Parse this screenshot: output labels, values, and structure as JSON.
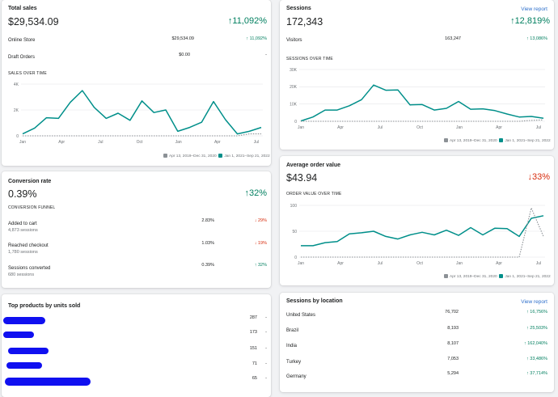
{
  "legend": {
    "previous": "Apr 13, 2019–Dec 31, 2020",
    "current": "Jan 1, 2021–Sep 21, 2022",
    "previous_color": "#8c9196",
    "current_color": "#008f8a"
  },
  "total_sales": {
    "title": "Total sales",
    "value": "$29,534.09",
    "change": "11,092%",
    "arrow": "↑",
    "rows": [
      {
        "label": "Online Store",
        "value": "$29,534.09",
        "change": "↑ 11,092%"
      },
      {
        "label": "Draft Orders",
        "value": "$0.00",
        "change": "-"
      }
    ],
    "chart_label": "SALES OVER TIME",
    "chart_data": {
      "type": "line",
      "y_ticks": [
        "0",
        "2K",
        "4K"
      ],
      "ylim": [
        0,
        4000
      ],
      "x_ticks": [
        "Jan",
        "Apr",
        "Jul",
        "Oct",
        "Jan",
        "Apr",
        "Jul"
      ],
      "series": [
        {
          "name": "Jan 1, 2021–Sep 21, 2022",
          "values": [
            150,
            600,
            1400,
            1350,
            2600,
            3500,
            2200,
            1350,
            1750,
            1200,
            2700,
            1800,
            2000,
            350,
            650,
            1050,
            2650,
            1250,
            150,
            350,
            650
          ]
        },
        {
          "name": "Apr 13, 2019–Dec 31, 2020",
          "values": [
            0,
            0,
            0,
            0,
            0,
            0,
            0,
            0,
            0,
            0,
            0,
            0,
            0,
            0,
            0,
            0,
            0,
            0,
            0,
            150,
            150
          ]
        }
      ]
    }
  },
  "sessions": {
    "title": "Sessions",
    "view_report": "View report",
    "value": "172,343",
    "change": "12,819%",
    "arrow": "↑",
    "rows": [
      {
        "label": "Visitors",
        "value": "163,247",
        "change": "↑ 13,086%"
      }
    ],
    "chart_label": "SESSIONS OVER TIME",
    "chart_data": {
      "type": "line",
      "y_ticks": [
        "0",
        "10K",
        "20K",
        "30K"
      ],
      "ylim": [
        0,
        30000
      ],
      "x_ticks": [
        "Jan",
        "Apr",
        "Jul",
        "Oct",
        "Jan",
        "Apr",
        "Jul"
      ],
      "series": [
        {
          "name": "Jan 1, 2021–Sep 21, 2022",
          "values": [
            200,
            2500,
            6500,
            6500,
            9000,
            12500,
            21000,
            18000,
            18200,
            9500,
            9700,
            6500,
            7500,
            11500,
            7000,
            7200,
            6200,
            4200,
            2500,
            2800,
            1800
          ]
        },
        {
          "name": "Apr 13, 2019–Dec 31, 2020",
          "values": [
            0,
            0,
            0,
            0,
            0,
            0,
            0,
            0,
            0,
            0,
            0,
            0,
            0,
            0,
            0,
            0,
            0,
            0,
            0,
            500,
            800
          ]
        }
      ]
    }
  },
  "conversion": {
    "title": "Conversion rate",
    "value": "0.39%",
    "change": "32%",
    "arrow": "↑",
    "funnel_label": "CONVERSION FUNNEL",
    "rows": [
      {
        "label": "Added to cart",
        "sub": "4,873 sessions",
        "value": "2.83%",
        "change": "↓ 29%",
        "dir": "down"
      },
      {
        "label": "Reached checkout",
        "sub": "1,780 sessions",
        "value": "1.03%",
        "change": "↓ 19%",
        "dir": "down"
      },
      {
        "label": "Sessions converted",
        "sub": "680 sessions",
        "value": "0.39%",
        "change": "↑ 32%",
        "dir": "up"
      }
    ]
  },
  "aov": {
    "title": "Average order value",
    "value": "$43.94",
    "change": "33%",
    "arrow": "↓",
    "chart_label": "ORDER VALUE OVER TIME",
    "chart_data": {
      "type": "line",
      "y_ticks": [
        "0",
        "50",
        "100"
      ],
      "ylim": [
        0,
        100
      ],
      "x_ticks": [
        "Jan",
        "Apr",
        "Jul",
        "Oct",
        "Jan",
        "Apr",
        "Jul"
      ],
      "series": [
        {
          "name": "Jan 1, 2021–Sep 21, 2022",
          "values": [
            22,
            22,
            28,
            30,
            45,
            47,
            50,
            40,
            35,
            43,
            48,
            43,
            52,
            42,
            57,
            43,
            56,
            55,
            40,
            75,
            80
          ]
        },
        {
          "name": "Apr 13, 2019–Dec 31, 2020",
          "values": [
            0,
            0,
            0,
            0,
            0,
            0,
            0,
            0,
            0,
            0,
            0,
            0,
            0,
            0,
            0,
            0,
            0,
            0,
            0,
            95,
            40
          ]
        }
      ]
    }
  },
  "top_products": {
    "title": "Top products by units sold",
    "rows": [
      {
        "value": "287",
        "change": "-"
      },
      {
        "value": "173",
        "change": "-"
      },
      {
        "value": "151",
        "change": "-"
      },
      {
        "value": "71",
        "change": "-"
      },
      {
        "value": "65",
        "change": "-"
      }
    ]
  },
  "locations": {
    "title": "Sessions by location",
    "view_report": "View report",
    "rows": [
      {
        "label": "United States",
        "value": "76,702",
        "change": "↑ 16,756%"
      },
      {
        "label": "Brazil",
        "value": "8,193",
        "change": "↑ 25,503%"
      },
      {
        "label": "India",
        "value": "8,107",
        "change": "↑ 162,040%"
      },
      {
        "label": "Turkey",
        "value": "7,053",
        "change": "↑ 33,486%"
      },
      {
        "label": "Germany",
        "value": "5,294",
        "change": "↑ 37,714%"
      }
    ]
  }
}
